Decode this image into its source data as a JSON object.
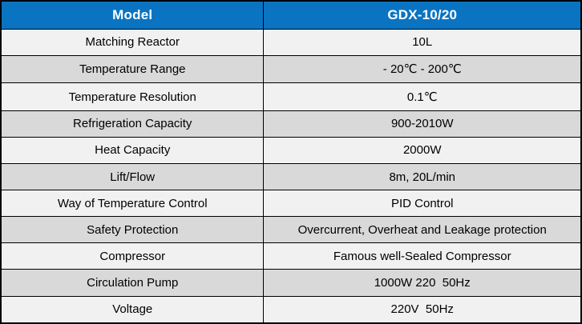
{
  "table": {
    "header": {
      "model_label": "Model",
      "model_value": "GDX-10/20"
    },
    "rows": [
      {
        "label": "Matching Reactor",
        "value": "10L"
      },
      {
        "label": "Temperature Range",
        "value": "- 20℃ - 200℃"
      },
      {
        "label": "Temperature Resolution",
        "value": "0.1℃"
      },
      {
        "label": "Refrigeration Capacity",
        "value": "900-2010W"
      },
      {
        "label": "Heat Capacity",
        "value": "2000W"
      },
      {
        "label": "Lift/Flow",
        "value": "8m, 20L/min"
      },
      {
        "label": "Way of Temperature Control",
        "value": "PID Control"
      },
      {
        "label": "Safety Protection",
        "value": "Overcurrent, Overheat and Leakage protection"
      },
      {
        "label": "Compressor",
        "value": "Famous well-Sealed Compressor"
      },
      {
        "label": "Circulation Pump",
        "value": "1000W 220  50Hz"
      },
      {
        "label": "Voltage",
        "value": "220V  50Hz"
      }
    ]
  },
  "colors": {
    "header_bg": "#0a74c2",
    "header_text": "#ffffff",
    "row_light": "#f1f1f1",
    "row_dark": "#d9d9d9",
    "border": "#000000",
    "body_text": "#000000"
  },
  "chart_data": {
    "type": "table",
    "title": "Product specification table",
    "columns": [
      "Model",
      "GDX-10/20"
    ],
    "rows": [
      [
        "Matching Reactor",
        "10L"
      ],
      [
        "Temperature Range",
        "- 20℃ - 200℃"
      ],
      [
        "Temperature Resolution",
        "0.1℃"
      ],
      [
        "Refrigeration Capacity",
        "900-2010W"
      ],
      [
        "Heat Capacity",
        "2000W"
      ],
      [
        "Lift/Flow",
        "8m, 20L/min"
      ],
      [
        "Way of Temperature Control",
        "PID Control"
      ],
      [
        "Safety Protection",
        "Overcurrent, Overheat and Leakage protection"
      ],
      [
        "Compressor",
        "Famous well-Sealed Compressor"
      ],
      [
        "Circulation Pump",
        "1000W 220  50Hz"
      ],
      [
        "Voltage",
        "220V  50Hz"
      ]
    ]
  }
}
